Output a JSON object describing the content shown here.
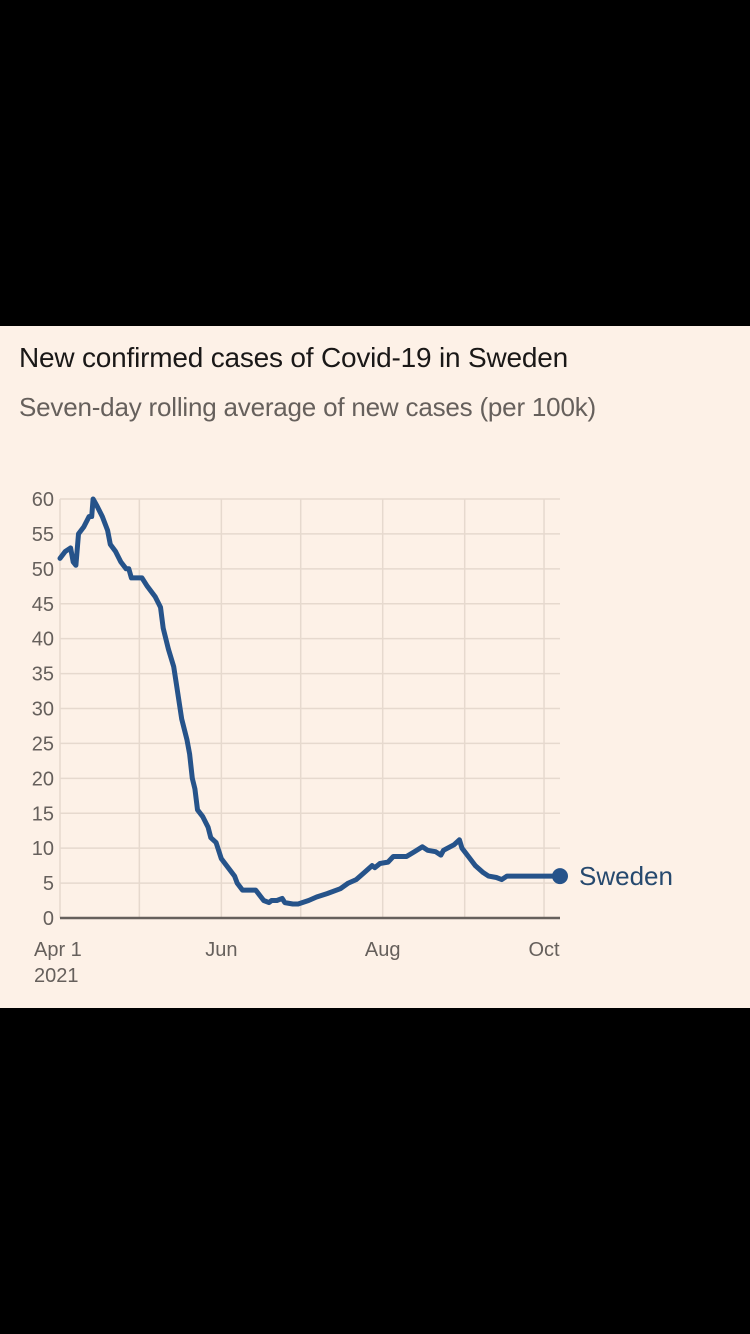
{
  "chart_data": {
    "type": "line",
    "title": "New confirmed cases of Covid-19 in Sweden",
    "subtitle": "Seven-day rolling average of new cases (per 100k)",
    "xlabel": "",
    "ylabel": "",
    "ylim": [
      0,
      60
    ],
    "yticks": [
      0,
      5,
      10,
      15,
      20,
      25,
      30,
      35,
      40,
      45,
      50,
      55,
      60
    ],
    "x_unit": "days since 2021-04-01",
    "xlim": [
      0,
      189
    ],
    "xticks": [
      {
        "day": 0,
        "label": "Apr 1",
        "sublabel": "2021"
      },
      {
        "day": 61,
        "label": "Jun",
        "sublabel": ""
      },
      {
        "day": 122,
        "label": "Aug",
        "sublabel": ""
      },
      {
        "day": 183,
        "label": "Oct",
        "sublabel": ""
      }
    ],
    "x_gridlines_days": [
      0,
      30,
      61,
      91,
      122,
      153,
      183
    ],
    "grid": true,
    "legend": "inline-end-label",
    "series": [
      {
        "name": "Sweden",
        "color": "#26538a",
        "points": [
          [
            0,
            51.5
          ],
          [
            2,
            52.5
          ],
          [
            4,
            53
          ],
          [
            5,
            51
          ],
          [
            6,
            50.5
          ],
          [
            7,
            55
          ],
          [
            9,
            56
          ],
          [
            11,
            57.5
          ],
          [
            12,
            57.5
          ],
          [
            12.5,
            60
          ],
          [
            14,
            59
          ],
          [
            16,
            57.5
          ],
          [
            18,
            55.5
          ],
          [
            19,
            53.5
          ],
          [
            21,
            52.5
          ],
          [
            23,
            51
          ],
          [
            25,
            50
          ],
          [
            26,
            50
          ],
          [
            27,
            48.7
          ],
          [
            31,
            48.7
          ],
          [
            33,
            47.5
          ],
          [
            36,
            46
          ],
          [
            38,
            44.5
          ],
          [
            39,
            41.5
          ],
          [
            41,
            38.5
          ],
          [
            43,
            36
          ],
          [
            44,
            33.5
          ],
          [
            46,
            28.5
          ],
          [
            48,
            25.5
          ],
          [
            49,
            23.5
          ],
          [
            50,
            20
          ],
          [
            51,
            18.5
          ],
          [
            52,
            15.5
          ],
          [
            54,
            14.5
          ],
          [
            56,
            13
          ],
          [
            57,
            11.5
          ],
          [
            59,
            10.8
          ],
          [
            61,
            8.5
          ],
          [
            63,
            7.5
          ],
          [
            66,
            6
          ],
          [
            67,
            5
          ],
          [
            69,
            4
          ],
          [
            71,
            4
          ],
          [
            74,
            4
          ],
          [
            76,
            3
          ],
          [
            77,
            2.5
          ],
          [
            79,
            2.2
          ],
          [
            80,
            2.5
          ],
          [
            82,
            2.5
          ],
          [
            84,
            2.8
          ],
          [
            85,
            2.2
          ],
          [
            88,
            2
          ],
          [
            90,
            2
          ],
          [
            94,
            2.5
          ],
          [
            97,
            3
          ],
          [
            101,
            3.5
          ],
          [
            106,
            4.2
          ],
          [
            109,
            5
          ],
          [
            112,
            5.5
          ],
          [
            115,
            6.5
          ],
          [
            118,
            7.5
          ],
          [
            119,
            7.2
          ],
          [
            121,
            7.8
          ],
          [
            124,
            8
          ],
          [
            126,
            8.8
          ],
          [
            131,
            8.8
          ],
          [
            134,
            9.5
          ],
          [
            137,
            10.2
          ],
          [
            139,
            9.7
          ],
          [
            142,
            9.5
          ],
          [
            144,
            9
          ],
          [
            145,
            9.7
          ],
          [
            149,
            10.5
          ],
          [
            151,
            11.2
          ],
          [
            152,
            10
          ],
          [
            155,
            8.5
          ],
          [
            157,
            7.5
          ],
          [
            160,
            6.5
          ],
          [
            162,
            6
          ],
          [
            165,
            5.8
          ],
          [
            167,
            5.5
          ],
          [
            169,
            6
          ],
          [
            175,
            6
          ]
        ],
        "end_label": "Sweden",
        "end_marker_value": 6
      }
    ]
  }
}
